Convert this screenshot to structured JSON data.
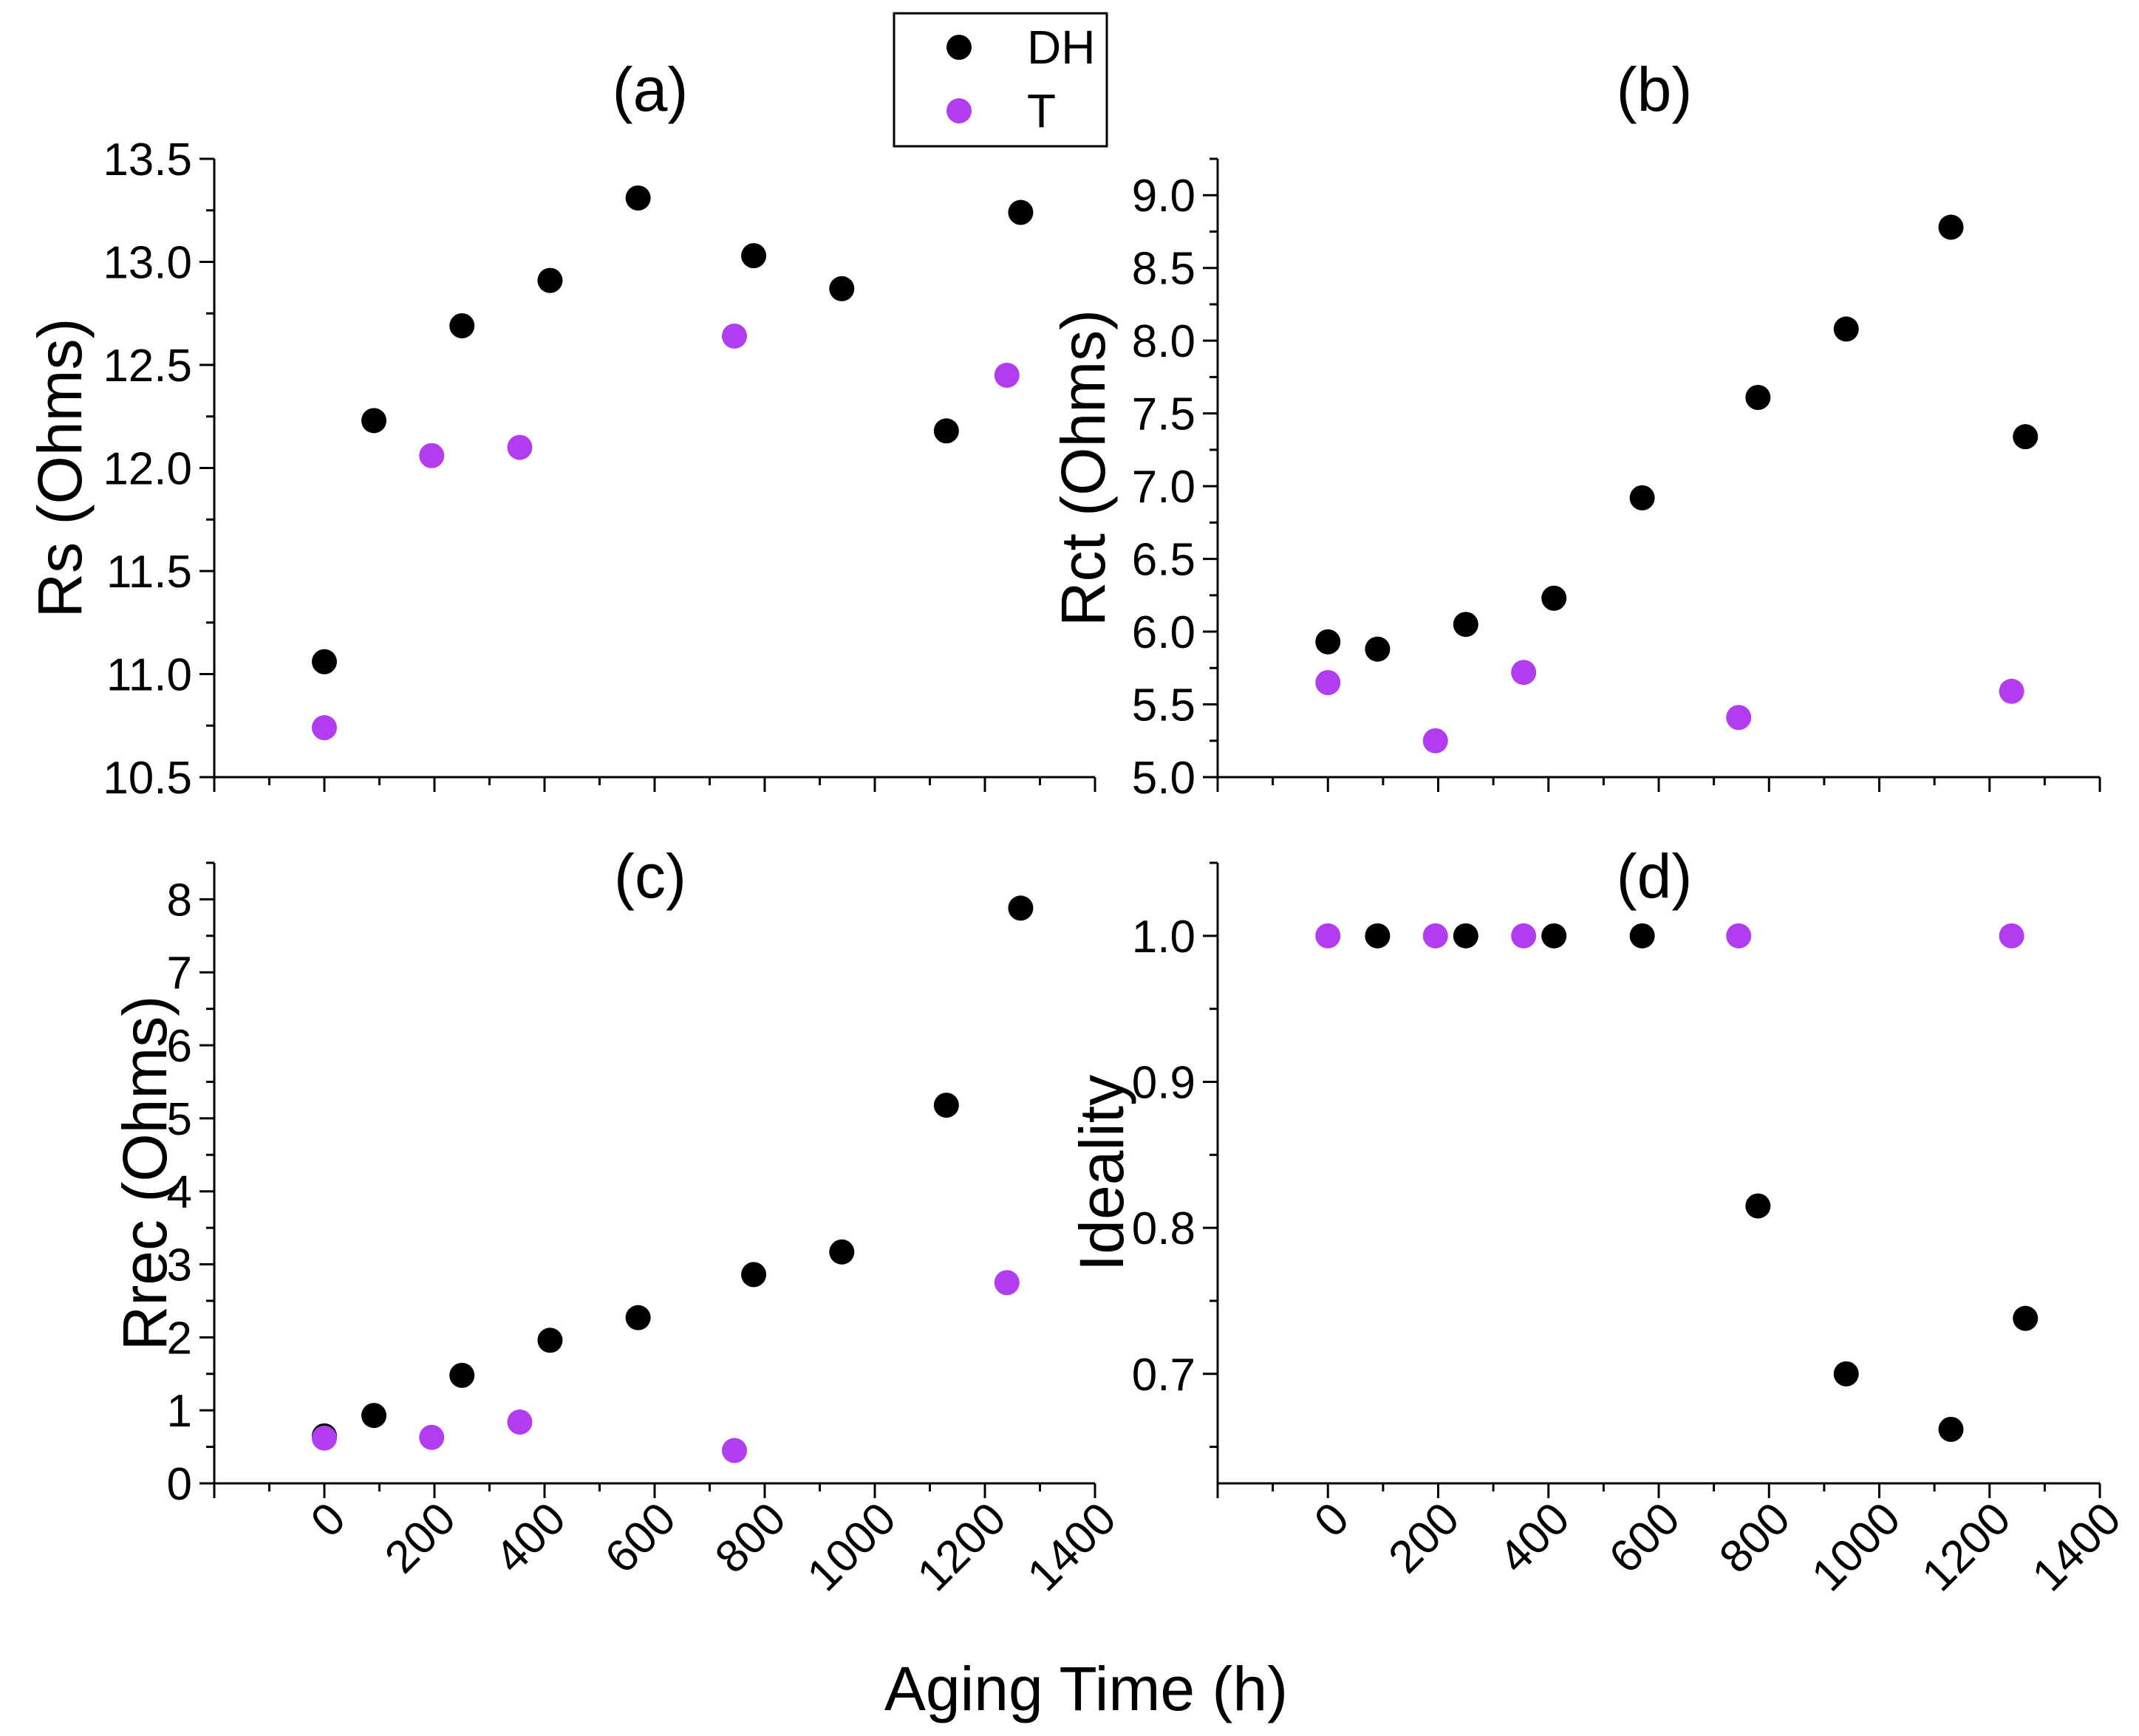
{
  "chart_data": {
    "type": "scatter",
    "xlabel": "Aging Time (h)",
    "legend": {
      "placement": "top-center",
      "entries": [
        {
          "name": "DH",
          "color": "#000000"
        },
        {
          "name": "T",
          "color": "#b23cf0"
        }
      ]
    },
    "x_ticks": [
      0,
      200,
      400,
      600,
      800,
      1000,
      1200,
      1400
    ],
    "x_tick_labels": [
      "0",
      "200",
      "400",
      "600",
      "800",
      "1000",
      "1200",
      "1400"
    ],
    "xlim": [
      -200,
      1400
    ],
    "panels": [
      {
        "label": "(a)",
        "ylabel": "Rs (Ohms)",
        "ylim": [
          10.5,
          13.5
        ],
        "y_ticks": [
          10.5,
          11.0,
          11.5,
          12.0,
          12.5,
          13.0,
          13.5
        ],
        "y_tick_labels": [
          "10.5",
          "11.0",
          "11.5",
          "12.0",
          "12.5",
          "13.0",
          "13.5"
        ],
        "series": [
          {
            "name": "DH",
            "color": "#000000",
            "x": [
              0,
              90,
              250,
              410,
              570,
              780,
              940,
              1130,
              1265
            ],
            "y": [
              11.06,
              12.23,
              12.69,
              12.91,
              13.31,
              13.03,
              12.87,
              12.18,
              13.24
            ]
          },
          {
            "name": "T",
            "color": "#b23cf0",
            "x": [
              0,
              195,
              355,
              745,
              1240
            ],
            "y": [
              10.74,
              12.06,
              12.1,
              12.64,
              12.45
            ]
          }
        ]
      },
      {
        "label": "(b)",
        "ylabel": "Rct (Ohms)",
        "ylim": [
          5.0,
          9.25
        ],
        "y_ticks": [
          5.0,
          5.5,
          6.0,
          6.5,
          7.0,
          7.5,
          8.0,
          8.5,
          9.0
        ],
        "y_tick_labels": [
          "5.0",
          "5.5",
          "6.0",
          "6.5",
          "7.0",
          "7.5",
          "8.0",
          "8.5",
          "9.0"
        ],
        "series": [
          {
            "name": "DH",
            "color": "#000000",
            "x": [
              0,
              90,
              250,
              410,
              570,
              780,
              940,
              1130,
              1265
            ],
            "y": [
              5.93,
              5.88,
              6.05,
              6.23,
              6.92,
              7.61,
              8.08,
              8.78,
              7.34
            ]
          },
          {
            "name": "T",
            "color": "#b23cf0",
            "x": [
              0,
              195,
              355,
              745,
              1240
            ],
            "y": [
              5.65,
              5.25,
              5.72,
              5.41,
              5.59
            ]
          }
        ]
      },
      {
        "label": "(c)",
        "ylabel": "Rrec (Ohms)",
        "ylim": [
          0,
          8.5
        ],
        "y_ticks": [
          0,
          1,
          2,
          3,
          4,
          5,
          6,
          7,
          8
        ],
        "y_tick_labels": [
          "0",
          "1",
          "2",
          "3",
          "4",
          "5",
          "6",
          "7",
          "8"
        ],
        "series": [
          {
            "name": "DH",
            "color": "#000000",
            "x": [
              0,
              90,
              250,
              410,
              570,
              780,
              940,
              1130,
              1265
            ],
            "y": [
              0.65,
              0.93,
              1.48,
              1.96,
              2.27,
              2.86,
              3.17,
              5.18,
              7.88
            ]
          },
          {
            "name": "T",
            "color": "#b23cf0",
            "x": [
              0,
              195,
              355,
              745,
              1240
            ],
            "y": [
              0.62,
              0.63,
              0.84,
              0.45,
              2.75
            ]
          }
        ]
      },
      {
        "label": "(d)",
        "ylabel": "Ideality",
        "ylim": [
          0.625,
          1.05
        ],
        "y_ticks": [
          0.7,
          0.8,
          0.9,
          1.0
        ],
        "y_tick_labels": [
          "0.7",
          "0.8",
          "0.9",
          "1.0"
        ],
        "series": [
          {
            "name": "DH",
            "color": "#000000",
            "x": [
              90,
              250,
              410,
              570,
              780,
              940,
              1130,
              1265
            ],
            "y": [
              1.0,
              1.0,
              1.0,
              1.0,
              0.815,
              0.7,
              0.662,
              0.738
            ]
          },
          {
            "name": "T",
            "color": "#b23cf0",
            "x": [
              0,
              195,
              355,
              745,
              1240
            ],
            "y": [
              1.0,
              1.0,
              1.0,
              1.0,
              1.0
            ]
          }
        ]
      }
    ]
  }
}
